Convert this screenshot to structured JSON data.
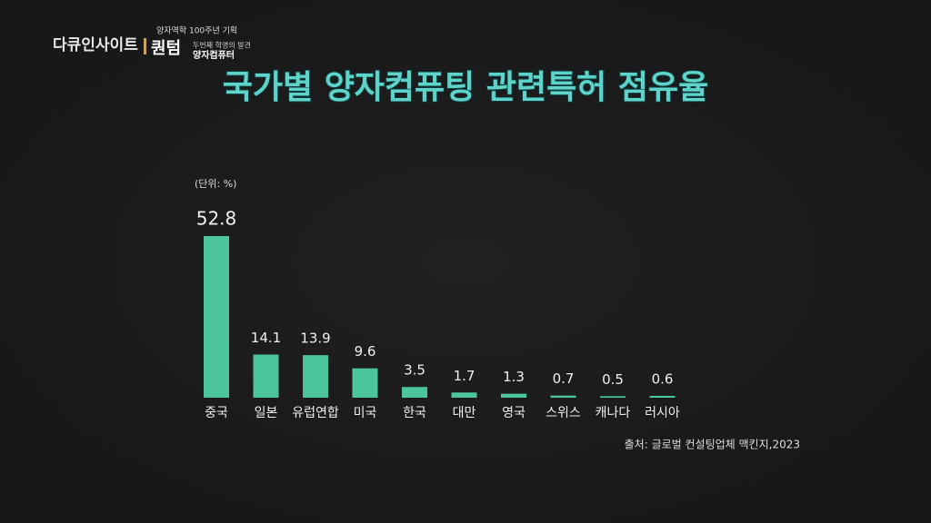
{
  "logo": {
    "program": "다큐인사이트",
    "series_title": "양자역학 100주년 기획",
    "brand": "퀀텀",
    "subtitle": "두번째 혁명의 발견",
    "episode": "양자컴퓨터"
  },
  "chart_data": {
    "type": "bar",
    "title": "국가별 양자컴퓨팅 관련특허 점유율",
    "unit_label": "(단위: %)",
    "categories": [
      "중국",
      "일본",
      "유럽연합",
      "미국",
      "한국",
      "대만",
      "영국",
      "스위스",
      "캐나다",
      "러시아"
    ],
    "values": [
      52.8,
      14.1,
      13.9,
      9.6,
      3.5,
      1.7,
      1.3,
      0.7,
      0.5,
      0.6
    ],
    "color": "#4cc59a",
    "source": "출처: 글로벌 컨설팅업체 맥킨지,2023"
  }
}
